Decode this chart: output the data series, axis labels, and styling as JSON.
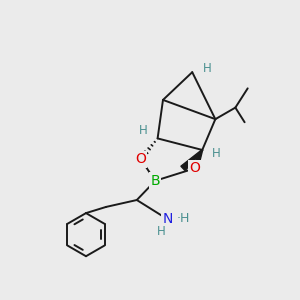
{
  "background_color": "#ebebeb",
  "fig_size": [
    3.0,
    3.0
  ],
  "dpi": 100,
  "atom_colors": {
    "C": "#1a1a1a",
    "O": "#e00000",
    "B": "#00aa00",
    "N": "#2020e0",
    "H": "#4a9090"
  },
  "bond_color": "#1a1a1a",
  "bond_width": 1.4
}
